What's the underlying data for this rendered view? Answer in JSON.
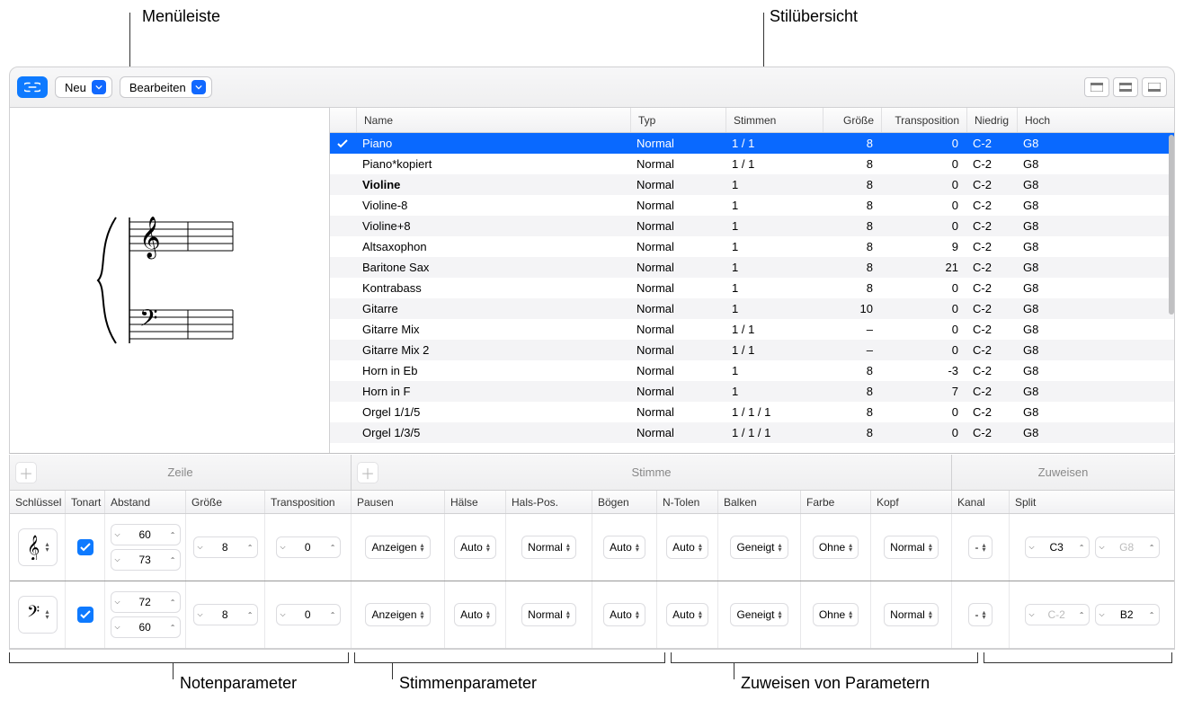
{
  "callouts": {
    "menuleiste": "Menüleiste",
    "stiluebersicht": "Stilübersicht",
    "notenparameter": "Notenparameter",
    "stimmenparameter": "Stimmenparameter",
    "zuweisen": "Zuweisen von Parametern"
  },
  "toolbar": {
    "neu": "Neu",
    "bearbeiten": "Bearbeiten"
  },
  "table": {
    "columns": {
      "name": "Name",
      "typ": "Typ",
      "stimmen": "Stimmen",
      "groesse": "Größe",
      "transposition": "Transposition",
      "niedrig": "Niedrig",
      "hoch": "Hoch"
    },
    "rows": [
      {
        "check": true,
        "name": "Piano",
        "typ": "Normal",
        "stimmen": "1 / 1",
        "groesse": "8",
        "trans": "0",
        "niedrig": "C-2",
        "hoch": "G8",
        "sel": true
      },
      {
        "check": false,
        "name": "Piano*kopiert",
        "typ": "Normal",
        "stimmen": "1 / 1",
        "groesse": "8",
        "trans": "0",
        "niedrig": "C-2",
        "hoch": "G8"
      },
      {
        "check": false,
        "name": "Violine",
        "typ": "Normal",
        "stimmen": "1",
        "groesse": "8",
        "trans": "0",
        "niedrig": "C-2",
        "hoch": "G8",
        "bold": true
      },
      {
        "check": false,
        "name": "Violine-8",
        "typ": "Normal",
        "stimmen": "1",
        "groesse": "8",
        "trans": "0",
        "niedrig": "C-2",
        "hoch": "G8"
      },
      {
        "check": false,
        "name": "Violine+8",
        "typ": "Normal",
        "stimmen": "1",
        "groesse": "8",
        "trans": "0",
        "niedrig": "C-2",
        "hoch": "G8"
      },
      {
        "check": false,
        "name": "Altsaxophon",
        "typ": "Normal",
        "stimmen": "1",
        "groesse": "8",
        "trans": "9",
        "niedrig": "C-2",
        "hoch": "G8"
      },
      {
        "check": false,
        "name": "Baritone Sax",
        "typ": "Normal",
        "stimmen": "1",
        "groesse": "8",
        "trans": "21",
        "niedrig": "C-2",
        "hoch": "G8"
      },
      {
        "check": false,
        "name": "Kontrabass",
        "typ": "Normal",
        "stimmen": "1",
        "groesse": "8",
        "trans": "0",
        "niedrig": "C-2",
        "hoch": "G8"
      },
      {
        "check": false,
        "name": "Gitarre",
        "typ": "Normal",
        "stimmen": "1",
        "groesse": "10",
        "trans": "0",
        "niedrig": "C-2",
        "hoch": "G8"
      },
      {
        "check": false,
        "name": "Gitarre Mix",
        "typ": "Normal",
        "stimmen": "1 / 1",
        "groesse": "–",
        "trans": "0",
        "niedrig": "C-2",
        "hoch": "G8"
      },
      {
        "check": false,
        "name": "Gitarre Mix 2",
        "typ": "Normal",
        "stimmen": "1 / 1",
        "groesse": "–",
        "trans": "0",
        "niedrig": "C-2",
        "hoch": "G8"
      },
      {
        "check": false,
        "name": "Horn in Eb",
        "typ": "Normal",
        "stimmen": "1",
        "groesse": "8",
        "trans": "-3",
        "niedrig": "C-2",
        "hoch": "G8"
      },
      {
        "check": false,
        "name": "Horn in F",
        "typ": "Normal",
        "stimmen": "1",
        "groesse": "8",
        "trans": "7",
        "niedrig": "C-2",
        "hoch": "G8"
      },
      {
        "check": false,
        "name": "Orgel 1/1/5",
        "typ": "Normal",
        "stimmen": "1 / 1 / 1",
        "groesse": "8",
        "trans": "0",
        "niedrig": "C-2",
        "hoch": "G8"
      },
      {
        "check": false,
        "name": "Orgel 1/3/5",
        "typ": "Normal",
        "stimmen": "1 / 1 / 1",
        "groesse": "8",
        "trans": "0",
        "niedrig": "C-2",
        "hoch": "G8"
      }
    ]
  },
  "sections": {
    "zeile": "Zeile",
    "stimme": "Stimme",
    "zuweisen": "Zuweisen"
  },
  "paramCols": {
    "schluessel": "Schlüssel",
    "tonart": "Tonart",
    "abstand": "Abstand",
    "groesse": "Größe",
    "transposition": "Transposition",
    "pausen": "Pausen",
    "haelse": "Hälse",
    "halspos": "Hals-Pos.",
    "boegen": "Bögen",
    "ntolen": "N-Tolen",
    "balken": "Balken",
    "farbe": "Farbe",
    "kopf": "Kopf",
    "kanal": "Kanal",
    "split": "Split"
  },
  "paramRows": [
    {
      "clef": "treble",
      "tonart": true,
      "abstand": [
        "60",
        "73"
      ],
      "groesse": "8",
      "trans": "0",
      "pausen": "Anzeigen",
      "haelse": "Auto",
      "halspos": "Normal",
      "boegen": "Auto",
      "ntolen": "Auto",
      "balken": "Geneigt",
      "farbe": "Ohne",
      "kopf": "Normal",
      "kanal": "-",
      "split1": "C3",
      "split2": "G8",
      "split2_disabled": true
    },
    {
      "clef": "bass",
      "tonart": true,
      "abstand": [
        "72",
        "60"
      ],
      "groesse": "8",
      "trans": "0",
      "pausen": "Anzeigen",
      "haelse": "Auto",
      "halspos": "Normal",
      "boegen": "Auto",
      "ntolen": "Auto",
      "balken": "Geneigt",
      "farbe": "Ohne",
      "kopf": "Normal",
      "kanal": "-",
      "split1": "C-2",
      "split1_disabled": true,
      "split2": "B2"
    }
  ]
}
